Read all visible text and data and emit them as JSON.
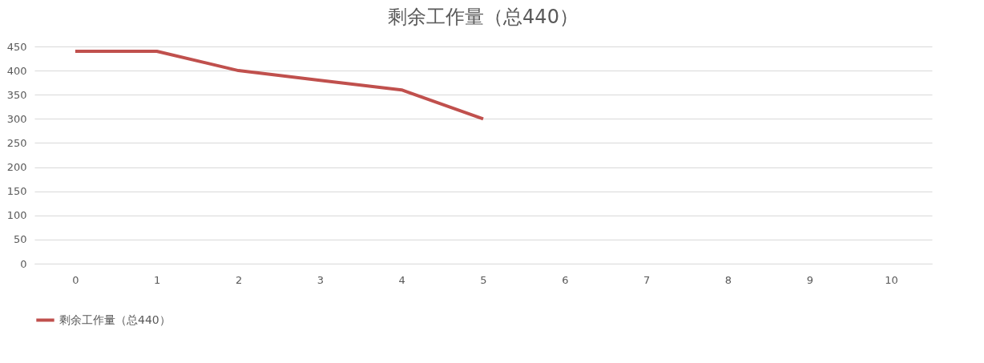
{
  "chart_data": {
    "type": "line",
    "title": "剩余工作量（总440）",
    "categories": [
      "0",
      "1",
      "2",
      "3",
      "4",
      "5",
      "6",
      "7",
      "8",
      "9",
      "10"
    ],
    "series": [
      {
        "name": "剩余工作量（总440）",
        "color": "#c0504d",
        "values": [
          440,
          440,
          400,
          380,
          360,
          300,
          null,
          null,
          null,
          null,
          null
        ]
      }
    ],
    "ylim": [
      0,
      450
    ],
    "yticks": [
      0,
      50,
      100,
      150,
      200,
      250,
      300,
      350,
      400,
      450
    ],
    "grid": "y",
    "legend": "bottom"
  }
}
